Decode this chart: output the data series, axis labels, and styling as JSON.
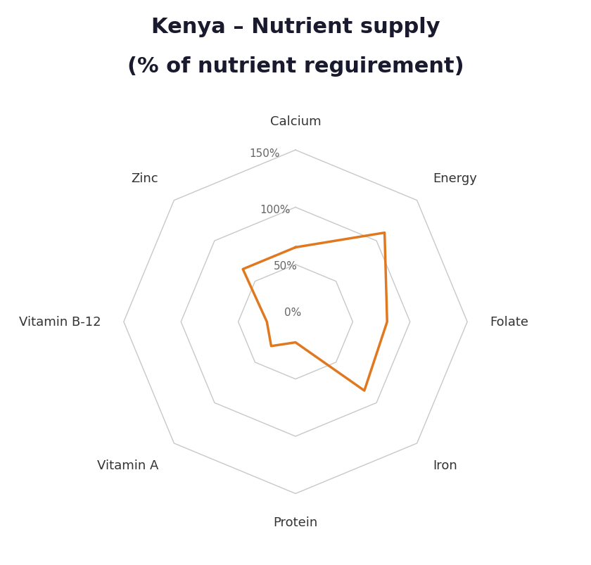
{
  "title_line1": "Kenya – Nutrient supply",
  "title_line2": "(% of nutrient reguirement)",
  "categories": [
    "Calcium",
    "Energy",
    "Folate",
    "Iron",
    "Protein",
    "Vitamin A",
    "Vitamin B-12",
    "Zinc"
  ],
  "values": [
    65,
    110,
    80,
    85,
    18,
    30,
    25,
    65
  ],
  "grid_levels": [
    0,
    50,
    100,
    150
  ],
  "grid_labels": [
    "0%",
    "50%",
    "100%",
    "150%"
  ],
  "max_val": 150,
  "line_color": "#E07820",
  "grid_color": "#C8C8C8",
  "background_color": "#FFFFFF",
  "title_fontsize": 22,
  "label_fontsize": 13,
  "grid_label_fontsize": 11,
  "title_color": "#1a1a2e",
  "label_color": "#333333",
  "grid_label_color": "#666666"
}
